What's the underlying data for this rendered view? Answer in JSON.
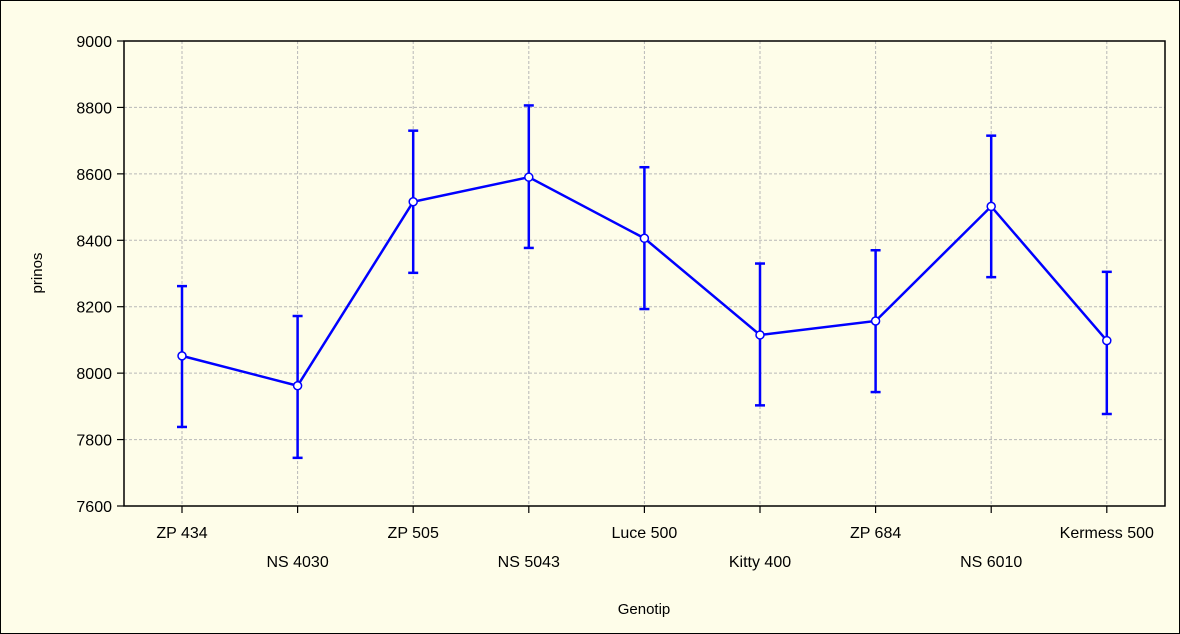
{
  "chart_data": {
    "type": "line",
    "xlabel": "Genotip",
    "ylabel": "prinos",
    "ylim": [
      7600,
      9000
    ],
    "yticks": [
      7600,
      7800,
      8000,
      8200,
      8400,
      8600,
      8800,
      9000
    ],
    "grid": true,
    "categories": [
      "ZP 434",
      "NS 4030",
      "ZP 505",
      "NS 5043",
      "Luce 500",
      "Kitty 400",
      "ZP 684",
      "NS 6010",
      "Kermess 500"
    ],
    "series": [
      {
        "values": [
          8052,
          7962,
          8516,
          8590,
          8406,
          8115,
          8157,
          8502,
          8098
        ],
        "error_low": [
          7838,
          7745,
          8302,
          8377,
          8193,
          7903,
          7943,
          8289,
          7877
        ],
        "error_high": [
          8262,
          8172,
          8730,
          8806,
          8620,
          8330,
          8370,
          8715,
          8305
        ],
        "color": "#0000ff"
      }
    ]
  }
}
